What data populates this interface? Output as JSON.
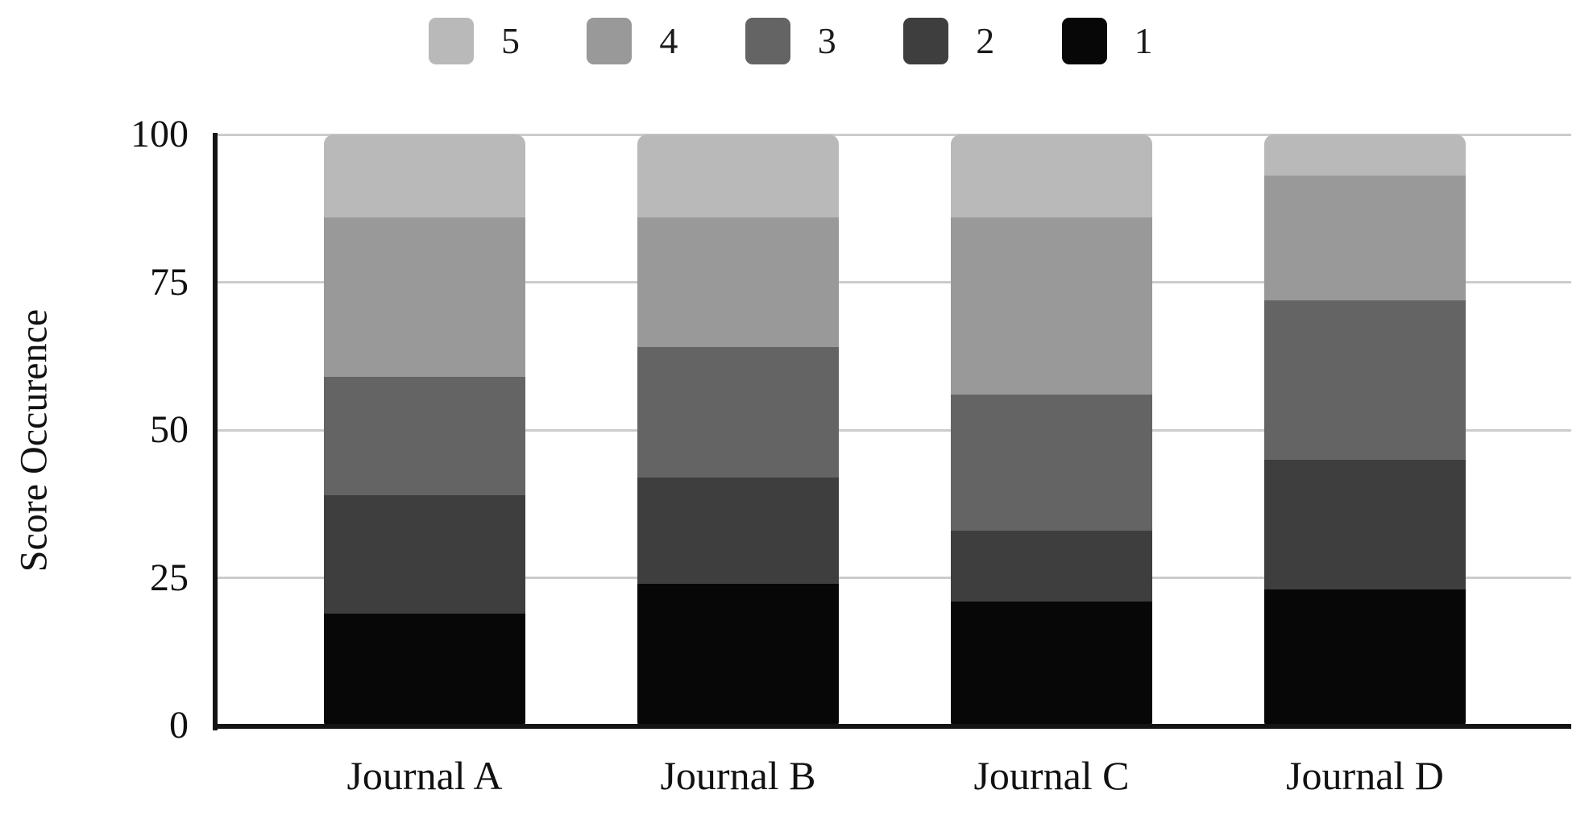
{
  "chart_data": {
    "type": "bar",
    "stacked": true,
    "title": "",
    "ylabel": "Score Occurence",
    "xlabel": "",
    "categories": [
      "Journal A",
      "Journal B",
      "Journal C",
      "Journal D"
    ],
    "series": [
      {
        "name": "5",
        "color": "#b9b9b9",
        "values": [
          14,
          14,
          14,
          7
        ]
      },
      {
        "name": "4",
        "color": "#999999",
        "values": [
          27,
          22,
          30,
          21
        ]
      },
      {
        "name": "3",
        "color": "#646464",
        "values": [
          20,
          22,
          23,
          27
        ]
      },
      {
        "name": "2",
        "color": "#3e3e3e",
        "values": [
          20,
          18,
          12,
          22
        ]
      },
      {
        "name": "1",
        "color": "#070707",
        "values": [
          19,
          24,
          21,
          23
        ]
      }
    ],
    "ylim": [
      0,
      100
    ],
    "yticks": [
      0,
      25,
      50,
      75,
      100
    ],
    "grid": "horizontal",
    "legend_position": "top",
    "legend_order": [
      "5",
      "4",
      "3",
      "2",
      "1"
    ],
    "gridline_color": "#cccccc",
    "axis_color": "#141414",
    "text_color": "#111111",
    "background_color": "#ffffff"
  }
}
